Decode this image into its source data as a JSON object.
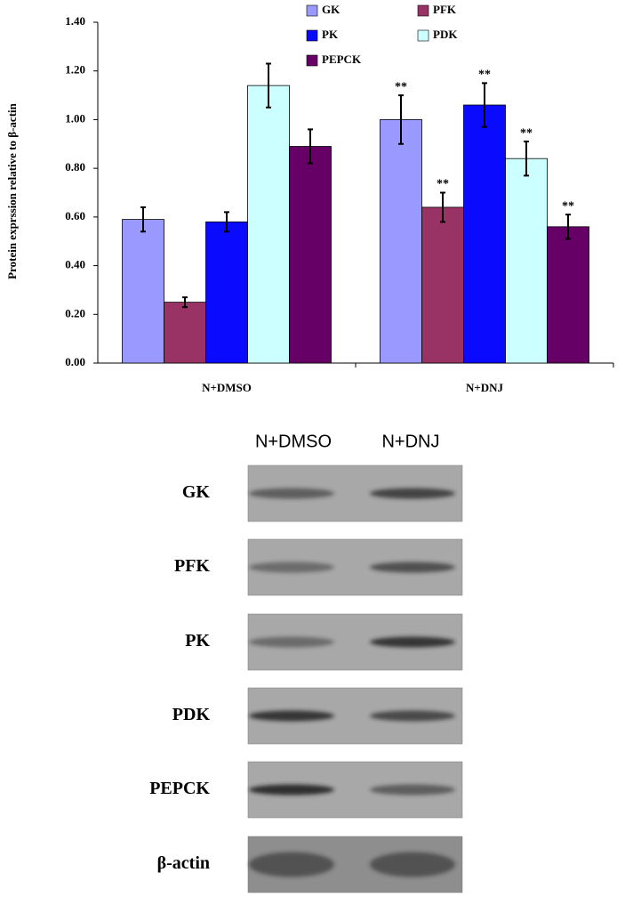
{
  "chart_data": {
    "type": "bar",
    "y_label": "Protein exprssion relative to β-actin",
    "categories": [
      "N+DMSO",
      "N+DNJ"
    ],
    "series": [
      {
        "name": "GK",
        "color": "#9999ff",
        "values": [
          0.59,
          1.0
        ],
        "errors": [
          0.05,
          0.1
        ],
        "significance": [
          null,
          "**"
        ]
      },
      {
        "name": "PFK",
        "color": "#993366",
        "values": [
          0.25,
          0.64
        ],
        "errors": [
          0.02,
          0.06
        ],
        "significance": [
          null,
          "**"
        ]
      },
      {
        "name": "PK",
        "color": "#0a0aff",
        "values": [
          0.58,
          1.06
        ],
        "errors": [
          0.04,
          0.09
        ],
        "significance": [
          null,
          "**"
        ]
      },
      {
        "name": "PDK",
        "color": "#ccffff",
        "values": [
          1.14,
          0.84
        ],
        "errors": [
          0.09,
          0.07
        ],
        "significance": [
          null,
          "**"
        ]
      },
      {
        "name": "PEPCK",
        "color": "#660066",
        "values": [
          0.89,
          0.56
        ],
        "errors": [
          0.07,
          0.05
        ],
        "significance": [
          null,
          "**"
        ]
      }
    ],
    "ylim": [
      0,
      1.4
    ],
    "yticks": [
      {
        "value": 0,
        "label": "0.00"
      },
      {
        "value": 0.2,
        "label": "0.20"
      },
      {
        "value": 0.4,
        "label": "0.40"
      },
      {
        "value": 0.6,
        "label": "0.60"
      },
      {
        "value": 0.8,
        "label": "0.80"
      },
      {
        "value": 1.0,
        "label": "1.00"
      },
      {
        "value": 1.2,
        "label": "1.20"
      },
      {
        "value": 1.4,
        "label": "1.40"
      }
    ],
    "legend": "top"
  },
  "blot": {
    "lanes": [
      "N+DMSO",
      "N+DNJ"
    ],
    "rows": [
      "GK",
      "PFK",
      "PK",
      "PDK",
      "PEPCK",
      "β-actin"
    ]
  }
}
